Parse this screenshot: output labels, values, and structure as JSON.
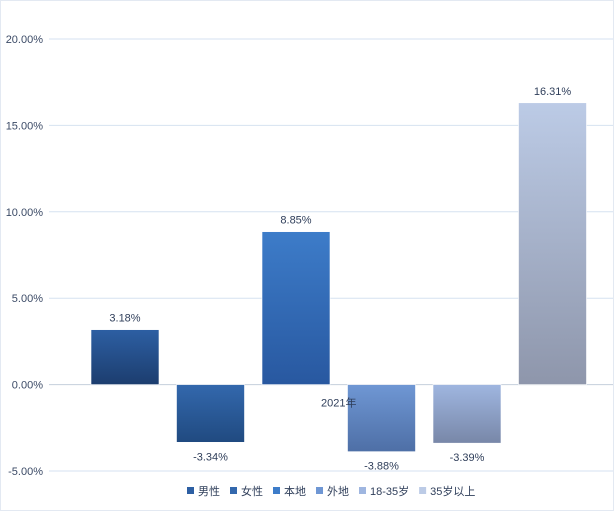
{
  "chart_data": {
    "type": "bar",
    "categories": [
      "2021年"
    ],
    "series": [
      {
        "name": "男性",
        "values": [
          3.18
        ],
        "label": "3.18%"
      },
      {
        "name": "女性",
        "values": [
          -3.34
        ],
        "label": "-3.34%"
      },
      {
        "name": "本地",
        "values": [
          8.85
        ],
        "label": "8.85%"
      },
      {
        "name": "外地",
        "values": [
          -3.88
        ],
        "label": "-3.88%"
      },
      {
        "name": "18-35岁",
        "values": [
          -3.39
        ],
        "label": "-3.39%"
      },
      {
        "name": "35岁以上",
        "values": [
          16.31
        ],
        "label": "16.31%"
      }
    ],
    "ylim": [
      -5,
      20
    ],
    "yticks": [
      20,
      15,
      10,
      5,
      0,
      -5
    ],
    "ytick_labels": [
      "20.00%",
      "15.00%",
      "10.00%",
      "5.00%",
      "0.00%",
      "-5.00%"
    ],
    "grid": true,
    "legend_position": "bottom",
    "title": "",
    "xlabel": "",
    "ylabel": "",
    "colors": {
      "男性": [
        "#2d5fa3",
        "#1c3d6e"
      ],
      "女性": [
        "#3368ad",
        "#204a80"
      ],
      "本地": [
        "#3d7cc9",
        "#2858a0"
      ],
      "外地": [
        "#6f97d4",
        "#4e6fa6"
      ],
      "18-35岁": [
        "#9fb6e0",
        "#7887a8"
      ],
      "35岁以上": [
        "#bccbe6",
        "#8e96ab"
      ],
      "grid": "#d6e2f0",
      "axis": "#c5cfdc"
    }
  }
}
